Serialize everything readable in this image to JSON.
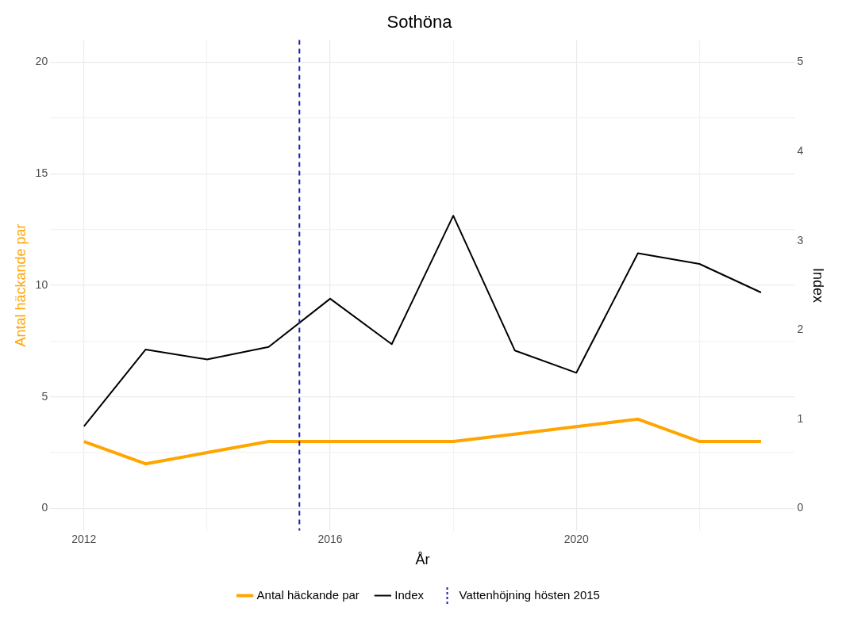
{
  "chart_data": {
    "type": "line",
    "title": "Sothöna",
    "xlabel": "År",
    "ylabel": "Antal häckande par",
    "y2label": "Index",
    "x": [
      2012,
      2013,
      2014,
      2015,
      2016,
      2017,
      2018,
      2019,
      2020,
      2021,
      2022,
      2023
    ],
    "series": [
      {
        "name": "Antal häckande par",
        "color": "#ffa500",
        "values": [
          3,
          2,
          2.5,
          3,
          3,
          3,
          3,
          3.33,
          3.67,
          4,
          3,
          3
        ]
      },
      {
        "name": "Index",
        "color": "#000000",
        "axis": "y2",
        "values": [
          0.92,
          1.78,
          1.67,
          1.81,
          2.35,
          1.84,
          3.28,
          1.77,
          1.52,
          2.86,
          2.74,
          2.42
        ]
      }
    ],
    "xlim": [
      2011.45,
      2023.55
    ],
    "xticks": [
      2012,
      {
        "value": 2014,
        "label": null
      },
      2016,
      {
        "value": 2018,
        "label": null
      },
      2020,
      {
        "value": 2022,
        "label": null
      }
    ],
    "ylim": [
      -1,
      21
    ],
    "yticks": [
      0,
      {
        "value": 2.5,
        "label": null
      },
      5,
      {
        "value": 7.5,
        "label": null
      },
      10,
      {
        "value": 12.5,
        "label": null
      },
      15,
      {
        "value": 17.5,
        "label": null
      },
      20
    ],
    "y2lim": [
      -0.25,
      5.25
    ],
    "y2ticks": [
      0,
      1,
      2,
      3,
      4,
      5
    ],
    "ref_lines": [
      {
        "axis": "x",
        "value": 2015.5,
        "label": "Vattenhöjning hösten 2015",
        "color": "#1c1cb4",
        "line_style": "dashed"
      }
    ],
    "grid": true,
    "legend": "bottom",
    "marker": "none",
    "line_style": "solid"
  }
}
